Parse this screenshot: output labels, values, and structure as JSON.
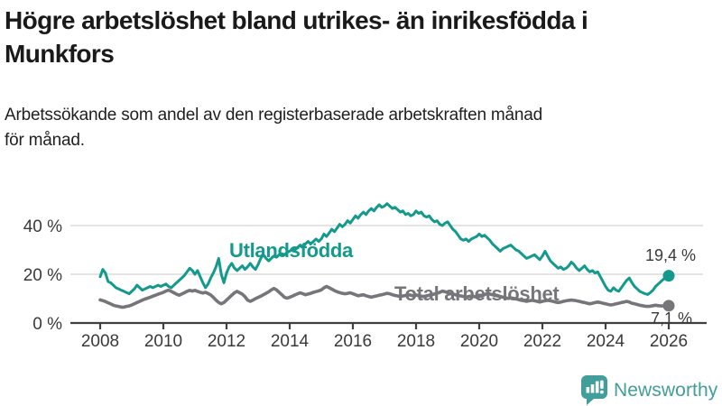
{
  "header": {
    "title_lines": [
      "Högre arbetslöshet bland utrikes- än inrikesfödda i",
      "Munkfors"
    ],
    "subtitle_lines": [
      "Arbetssökande som andel av den registerbaserade arbetskraften månad",
      "för månad."
    ]
  },
  "footer": {
    "brand": "Newsworthy",
    "logo_icon": "bar-chart-speech-bubble-icon",
    "logo_color": "#419e9a"
  },
  "colors": {
    "accent_teal": "#149a8d",
    "line_gray": "#76767a",
    "grid": "#dcdcdc",
    "axis": "#404040",
    "text_dark": "#1a1a1a",
    "tick_text": "#3a3a3a"
  },
  "chart_data": {
    "type": "line",
    "title": "Högre arbetslöshet bland utrikes- än inrikesfödda i Munkfors",
    "subtitle": "Arbetssökande som andel av den registerbaserade arbetskraften månad för månad.",
    "unit": "%",
    "grid": "horizontal-only",
    "legend_position": "inline-labels-on-chart",
    "x_axis": {
      "start_year": 2008,
      "points_per_year": 12,
      "ticks": [
        2008,
        2010,
        2012,
        2014,
        2016,
        2018,
        2020,
        2022,
        2024,
        2026
      ],
      "range": [
        2008,
        2026.1
      ]
    },
    "y_axis": {
      "ticks": [
        0,
        20,
        40
      ],
      "tick_labels": [
        "0 %",
        "20 %",
        "40 %"
      ],
      "grid_values": [
        20,
        40
      ],
      "ylim": [
        0,
        50
      ]
    },
    "series": [
      {
        "name": "Utlandsfödda",
        "color": "#149a8d",
        "end_value": 19.4,
        "end_label": "19,4 %",
        "values": [
          19,
          22,
          20.5,
          17,
          16.5,
          15.5,
          14.5,
          14,
          13.5,
          13,
          12.5,
          12,
          13,
          14,
          15.5,
          14.5,
          13.5,
          14,
          14.5,
          15,
          14.5,
          15,
          15.5,
          15,
          15.5,
          16,
          15,
          14.5,
          15.5,
          16.5,
          17.5,
          18.5,
          19.5,
          21,
          22.5,
          21.5,
          20,
          21.5,
          19,
          16.5,
          14.5,
          16,
          18.5,
          20.5,
          23,
          26.5,
          20,
          16.5,
          20.5,
          23,
          24.5,
          22.5,
          21.5,
          22.5,
          23.5,
          22,
          23,
          24.5,
          23,
          22,
          24,
          26.5,
          28,
          26.5,
          25.5,
          26.5,
          27.5,
          27,
          28,
          28.5,
          28,
          29,
          29.5,
          30.5,
          30,
          31,
          32,
          31,
          32.5,
          33.5,
          32.5,
          33.5,
          34.5,
          33.5,
          34.5,
          36.5,
          35.5,
          37,
          38.5,
          37.5,
          39,
          40.5,
          39.5,
          40.5,
          42,
          41,
          42.5,
          44,
          43,
          44.5,
          45.5,
          44.5,
          46,
          47,
          46,
          47.5,
          48.5,
          47.5,
          48,
          49,
          48,
          47,
          47.5,
          46.5,
          45.5,
          46,
          44.5,
          45,
          44,
          44.5,
          46,
          45,
          45.5,
          44,
          43.5,
          44,
          42.5,
          41.5,
          42,
          40.5,
          40,
          41,
          41.5,
          40,
          38.5,
          37.5,
          36,
          34.5,
          34,
          34.5,
          33.5,
          34.5,
          35,
          35.5,
          36.5,
          35.5,
          36,
          35,
          34,
          32.5,
          31.5,
          30.5,
          29.5,
          30.5,
          31,
          31.5,
          32,
          31,
          30,
          29.5,
          28.5,
          27.5,
          26.5,
          27,
          27.5,
          28,
          27,
          26,
          27.5,
          29.5,
          27.5,
          25.5,
          24.5,
          23.5,
          22.5,
          23,
          22,
          22.5,
          23.5,
          25,
          24,
          22.5,
          21.5,
          22.5,
          23.5,
          22,
          21,
          21.5,
          20.5,
          21,
          19,
          17,
          15,
          13.5,
          13,
          14.5,
          13.5,
          13,
          14.5,
          16,
          17.5,
          18.5,
          16.5,
          15,
          14,
          13,
          12.5,
          12,
          11.7,
          12.5,
          13.5,
          15,
          16,
          17,
          18,
          18.8,
          19.4
        ]
      },
      {
        "name": "Total arbetslöshet",
        "color": "#76767a",
        "end_value": 7.1,
        "end_label": "7,1 %",
        "values": [
          9.5,
          9.2,
          8.8,
          8.3,
          7.8,
          7.3,
          7,
          6.8,
          6.5,
          6.5,
          6.8,
          7,
          7.4,
          7.9,
          8.4,
          8.9,
          9.4,
          9.8,
          10.2,
          10.6,
          11,
          11.4,
          11.8,
          12.2,
          12.6,
          13.1,
          13.5,
          13,
          12.4,
          11.8,
          11.4,
          11.9,
          12.4,
          13,
          13.4,
          13.1,
          13.4,
          13,
          12.6,
          12.3,
          12.6,
          12.1,
          11.5,
          10.5,
          9.4,
          8.4,
          7.9,
          8.4,
          9.4,
          10.4,
          11.4,
          12.4,
          13,
          12.4,
          11.8,
          10.8,
          9.4,
          8.9,
          9.4,
          10,
          10.5,
          11,
          11.6,
          12.2,
          12.8,
          13.6,
          14.2,
          13.6,
          12.6,
          11.6,
          10.6,
          10.2,
          10.6,
          11,
          11.5,
          12,
          12.4,
          12,
          11.6,
          11.9,
          12.2,
          12.6,
          12.9,
          13.2,
          13.6,
          14.4,
          15,
          14.5,
          13.9,
          13.3,
          12.8,
          12.5,
          12.2,
          12,
          12.2,
          12.4,
          12,
          11.6,
          11.2,
          11.4,
          11.6,
          11.2,
          10.9,
          10.6,
          10.9,
          11.1,
          11.4,
          11.6,
          11.9,
          12.2,
          12,
          11.6,
          11.3,
          11.1,
          10.9,
          11.1,
          11.3,
          11.6,
          11.4,
          11.1,
          11.5,
          11.2,
          11,
          10.9,
          11.1,
          11.4,
          11.6,
          11.9,
          12.2,
          12.6,
          13.1,
          12.8,
          12.5,
          12.1,
          11.9,
          11.6,
          11.3,
          11.1,
          10.9,
          10.6,
          10.9,
          11.1,
          10.9,
          10.6,
          10.9,
          11.1,
          11.6,
          12.1,
          11.9,
          11.6,
          11.3,
          11.1,
          10.9,
          10.6,
          10.3,
          10.1,
          10.3,
          10.1,
          9.9,
          9.6,
          9.3,
          9.1,
          8.9,
          9.1,
          9.3,
          9.1,
          8.9,
          8.6,
          8.9,
          9.1,
          9.3,
          9.1,
          8.9,
          8.6,
          8.4,
          8.6,
          8.9,
          9.1,
          9.3,
          9.4,
          9.3,
          9.1,
          8.9,
          8.6,
          8.4,
          8.1,
          7.9,
          8.1,
          8.4,
          8.6,
          8.4,
          8.1,
          7.9,
          7.6,
          7.4,
          7.6,
          7.9,
          8.1,
          8.4,
          8.6,
          8.9,
          8.6,
          8.1,
          7.9,
          7.6,
          7.3,
          7.1,
          6.9,
          6.8,
          6.9,
          7.1,
          7.3,
          7.1,
          7,
          7,
          7,
          7.1
        ]
      }
    ]
  }
}
